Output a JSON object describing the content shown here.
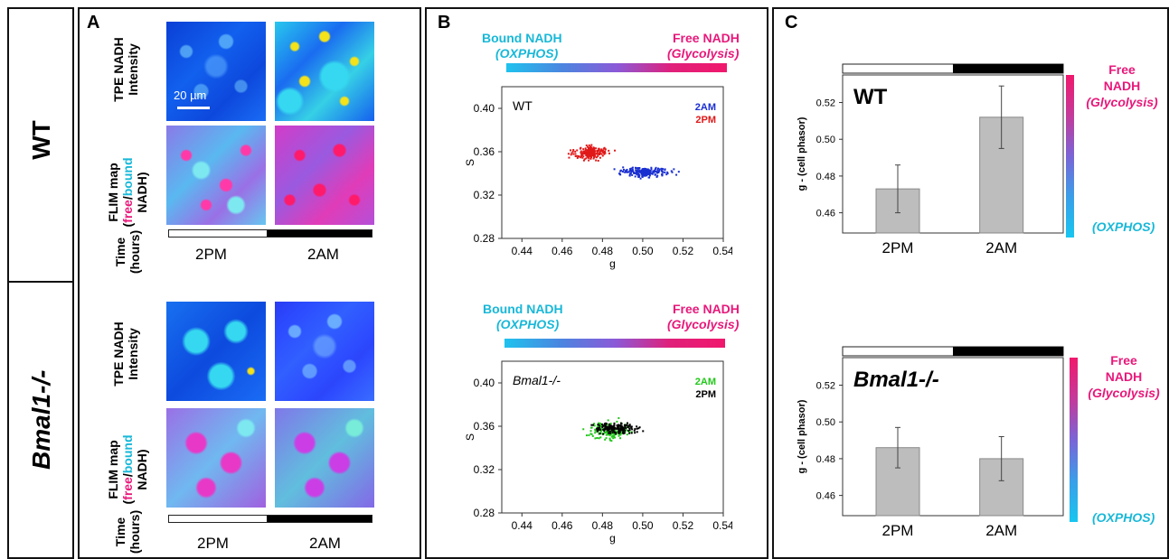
{
  "panels": {
    "a": "A",
    "b": "B",
    "c": "C"
  },
  "genotypes": {
    "wt": "WT",
    "ko": "Bmal1-/-"
  },
  "panel_a": {
    "row_intensity": [
      "TPE NADH",
      "Intensity"
    ],
    "row_flim": [
      "FLIM map",
      "(free/bound",
      "NADH)"
    ],
    "flim_free": "free",
    "flim_bound": "bound",
    "row_time": [
      "Time",
      "(hours)"
    ],
    "scale_bar": "20 µm",
    "time_2pm": "2PM",
    "time_2am": "2AM"
  },
  "panel_b": {
    "bound_label": "Bound NADH",
    "bound_sub": "(OXPHOS)",
    "free_label": "Free  NADH",
    "free_sub": "(Glycolysis)",
    "xlabel": "g",
    "ylabel": "S",
    "xticks": [
      "0.44",
      "0.46",
      "0.48",
      "0.50",
      "0.52",
      "0.54"
    ],
    "yticks": [
      "0.40",
      "0.36",
      "0.32",
      "0.28"
    ],
    "wt_name": "WT",
    "ko_name": "Bmal1-/-",
    "legend_2am": "2AM",
    "legend_2pm": "2PM"
  },
  "panel_c": {
    "ylabel": "g - (cell phasor)",
    "yticks": [
      "0.52",
      "0.50",
      "0.48",
      "0.46"
    ],
    "wt_title": "WT",
    "ko_title": "Bmal1-/-",
    "free_line1": "Free",
    "free_line2": "NADH",
    "free_line3": "(Glycolysis)",
    "oxphos": "(OXPHOS)",
    "categories": [
      "2PM",
      "2AM"
    ]
  },
  "colors": {
    "free": "#e8187a",
    "bound": "#18b8d8",
    "wt_2am": "#1a2fd0",
    "wt_2pm": "#e01818",
    "ko_2am": "#22c81a",
    "ko_2pm": "#000000"
  },
  "chart_data": [
    {
      "type": "scatter",
      "title": "WT",
      "xlabel": "g",
      "ylabel": "S",
      "xlim": [
        0.43,
        0.54
      ],
      "ylim": [
        0.28,
        0.42
      ],
      "series": [
        {
          "name": "2AM",
          "mean": [
            0.501,
            0.341
          ],
          "x_range": [
            0.47,
            0.53
          ],
          "y_range": [
            0.332,
            0.352
          ]
        },
        {
          "name": "2PM",
          "mean": [
            0.474,
            0.359
          ],
          "x_range": [
            0.445,
            0.49
          ],
          "y_range": [
            0.345,
            0.377
          ]
        }
      ]
    },
    {
      "type": "scatter",
      "title": "Bmal1-/-",
      "xlabel": "g",
      "ylabel": "S",
      "xlim": [
        0.43,
        0.54
      ],
      "ylim": [
        0.28,
        0.42
      ],
      "series": [
        {
          "name": "2AM",
          "mean": [
            0.483,
            0.356
          ],
          "x_range": [
            0.458,
            0.505
          ],
          "y_range": [
            0.33,
            0.372
          ]
        },
        {
          "name": "2PM",
          "mean": [
            0.487,
            0.358
          ],
          "x_range": [
            0.47,
            0.522
          ],
          "y_range": [
            0.345,
            0.372
          ]
        }
      ]
    },
    {
      "type": "bar",
      "title": "WT",
      "ylabel": "g - (cell phasor)",
      "categories": [
        "2PM",
        "2AM"
      ],
      "values": [
        0.473,
        0.512
      ],
      "errors": [
        0.013,
        0.017
      ],
      "ylim": [
        0.449,
        0.535
      ]
    },
    {
      "type": "bar",
      "title": "Bmal1-/-",
      "ylabel": "g - (cell phasor)",
      "categories": [
        "2PM",
        "2AM"
      ],
      "values": [
        0.486,
        0.48
      ],
      "errors": [
        0.011,
        0.012
      ],
      "ylim": [
        0.449,
        0.535
      ]
    }
  ]
}
